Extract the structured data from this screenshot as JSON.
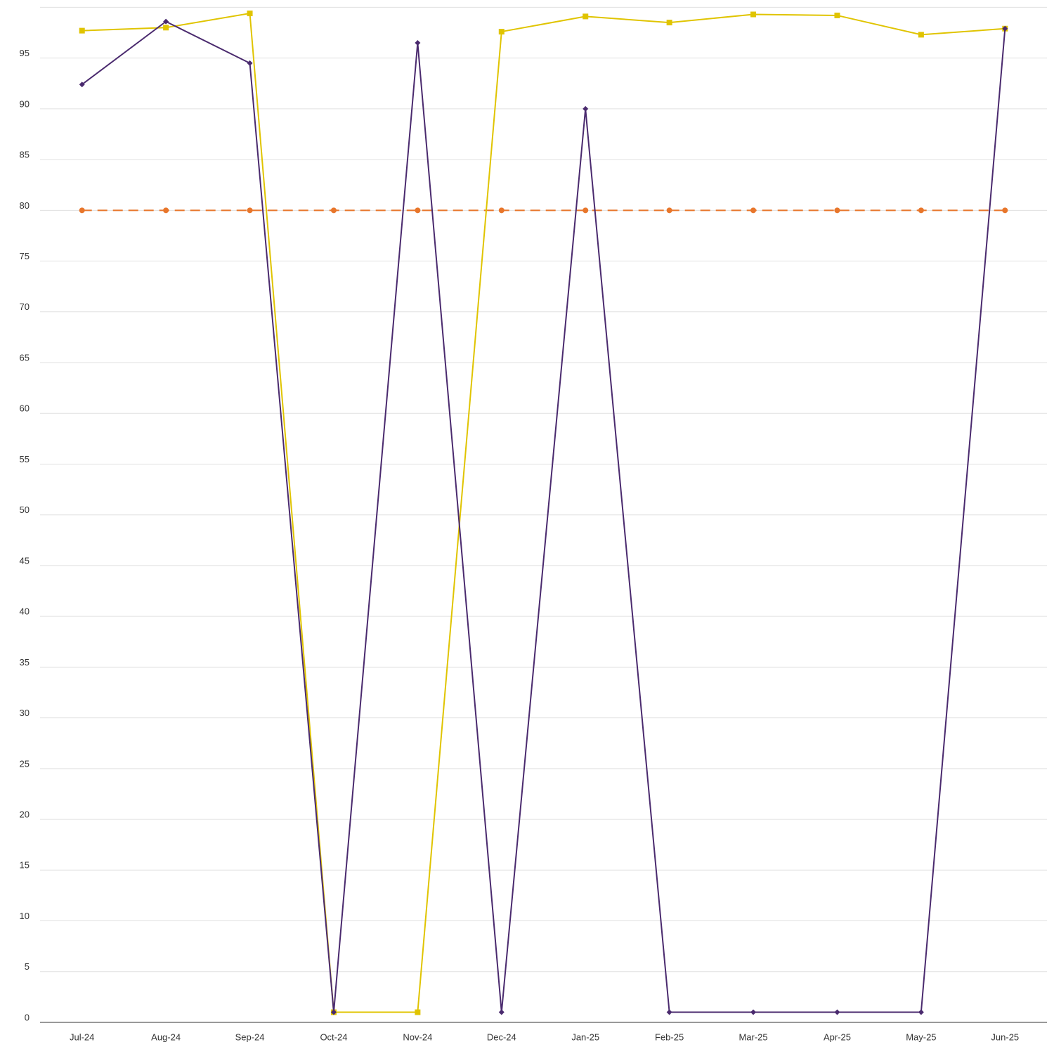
{
  "chart_data": {
    "type": "line",
    "categories": [
      "Jul-24",
      "Aug-24",
      "Sep-24",
      "Oct-24",
      "Nov-24",
      "Dec-24",
      "Jan-25",
      "Feb-25",
      "Mar-25",
      "Apr-25",
      "May-25",
      "Jun-25"
    ],
    "series": [
      {
        "color": "#e8762b",
        "marker": "circle",
        "dash": true,
        "values": [
          80,
          80,
          80,
          80,
          80,
          80,
          80,
          80,
          80,
          80,
          80,
          80
        ]
      },
      {
        "color": "#e0c400",
        "marker": "square",
        "dash": false,
        "values": [
          97.7,
          98.0,
          99.4,
          1.0,
          1.0,
          97.6,
          99.1,
          98.5,
          99.3,
          99.2,
          97.3,
          97.9
        ]
      },
      {
        "color": "#4a2a6e",
        "marker": "diamond",
        "dash": false,
        "values": [
          92.4,
          98.6,
          94.5,
          1.0,
          96.5,
          1.0,
          90.0,
          1.0,
          1.0,
          1.0,
          1.0,
          97.9
        ]
      }
    ],
    "ylim": [
      0,
      100
    ],
    "yticks": [
      0,
      5,
      10,
      15,
      20,
      25,
      30,
      35,
      40,
      45,
      50,
      55,
      60,
      65,
      70,
      75,
      80,
      85,
      90,
      95
    ],
    "grid": true
  }
}
